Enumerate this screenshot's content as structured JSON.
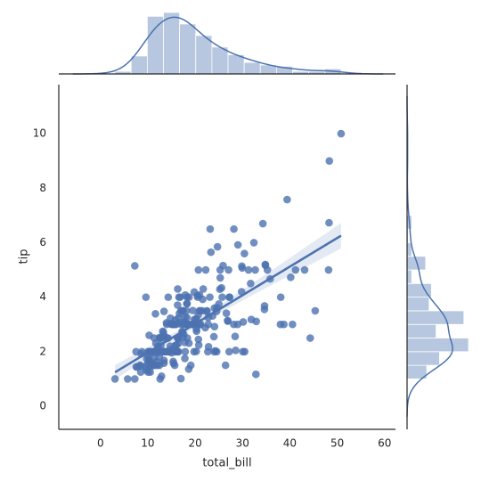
{
  "chart_data": {
    "type": "jointplot-reg",
    "xlabel": "total_bill",
    "ylabel": "tip",
    "color": "#4c72b0",
    "xlim": [
      -8.8,
      62.3
    ],
    "ylim": [
      -0.85,
      11.8
    ],
    "xticks": [
      0,
      10,
      20,
      30,
      40,
      50,
      60
    ],
    "yticks": [
      0,
      2,
      4,
      6,
      8,
      10
    ],
    "x": [
      16.99,
      10.34,
      21.01,
      23.68,
      24.59,
      25.29,
      8.77,
      26.88,
      15.04,
      14.78,
      10.27,
      35.26,
      15.42,
      18.43,
      14.83,
      21.58,
      10.33,
      16.29,
      16.97,
      20.65,
      17.92,
      20.29,
      15.77,
      39.42,
      19.82,
      17.81,
      13.37,
      12.69,
      21.7,
      19.65,
      9.55,
      18.35,
      15.06,
      20.69,
      17.78,
      24.06,
      16.31,
      16.93,
      18.69,
      31.27,
      16.04,
      17.46,
      13.94,
      9.68,
      30.4,
      18.29,
      22.23,
      32.4,
      28.55,
      18.04,
      12.54,
      10.29,
      34.81,
      9.94,
      25.56,
      19.49,
      38.01,
      26.41,
      11.24,
      48.27,
      20.29,
      13.81,
      11.02,
      18.29,
      17.59,
      20.08,
      16.45,
      3.07,
      20.23,
      15.01,
      12.02,
      17.07,
      26.86,
      25.28,
      14.73,
      10.51,
      17.92,
      27.2,
      22.76,
      17.29,
      19.44,
      16.66,
      10.07,
      32.68,
      15.98,
      34.83,
      13.03,
      18.28,
      24.71,
      21.16,
      28.97,
      22.49,
      5.75,
      16.32,
      22.75,
      40.17,
      27.28,
      12.03,
      21.01,
      12.46,
      11.35,
      15.38,
      44.3,
      22.42,
      20.92,
      15.36,
      20.49,
      25.21,
      18.24,
      14.31,
      14,
      7.25,
      38.07,
      23.95,
      25.71,
      17.31,
      29.93,
      10.65,
      12.43,
      24.08,
      11.69,
      13.42,
      14.26,
      15.95,
      12.48,
      29.8,
      8.52,
      14.52,
      11.38,
      22.82,
      19.08,
      20.27,
      11.17,
      12.26,
      18.26,
      8.51,
      10.33,
      14.15,
      16,
      13.16,
      17.47,
      34.3,
      41.19,
      27.05,
      16.43,
      8.35,
      18.64,
      11.87,
      9.78,
      7.51,
      14.07,
      13.13,
      17.26,
      24.55,
      19.77,
      29.85,
      48.17,
      25,
      13.39,
      16.49,
      21.5,
      12.66,
      16.21,
      13.81,
      17.51,
      24.52,
      20.76,
      31.71,
      10.59,
      10.63,
      50.81,
      15.81,
      7.25,
      31.85,
      16.82,
      32.9,
      17.89,
      14.48,
      9.6,
      34.63,
      34.65,
      23.33,
      45.35,
      23.17,
      40.55,
      20.69,
      20.9,
      30.46,
      18.15,
      23.1,
      15.69,
      19.81,
      28.44,
      15.48,
      16.58,
      7.56,
      10.34,
      43.11,
      13,
      13.51,
      18.71,
      12.74,
      13,
      16.4,
      20.53,
      16.47,
      26.59,
      38.73,
      24.27,
      12.76,
      30.06,
      25.89,
      48.33,
      13.27,
      28.17,
      12.9,
      28.15,
      11.59,
      7.74,
      30.14,
      12.16,
      13.42,
      8.58,
      15.98,
      13.42,
      16.27,
      10.09,
      20.45,
      13.28,
      22.12,
      24.01,
      15.69,
      11.61,
      10.77,
      15.53,
      10.07,
      12.6,
      32.83,
      35.83,
      29.03,
      27.18,
      22.67,
      17.82,
      18.78
    ],
    "y": [
      1.01,
      1.66,
      3.5,
      3.31,
      3.61,
      4.71,
      2,
      3.12,
      1.96,
      3.23,
      1.71,
      5,
      1.57,
      3,
      3.02,
      3.92,
      1.67,
      3.71,
      3.5,
      3.35,
      4.08,
      2.75,
      2.23,
      7.58,
      3.18,
      2.34,
      2,
      2,
      4.3,
      3,
      1.45,
      2.5,
      3,
      2.45,
      3.27,
      3.6,
      2,
      3.07,
      2.31,
      5,
      2.24,
      2.54,
      3.06,
      1.32,
      5.6,
      3,
      5,
      6,
      2.05,
      3,
      2.5,
      2.6,
      5.2,
      1.56,
      4.34,
      3.51,
      3,
      1.5,
      1.76,
      6.73,
      3.21,
      2,
      1.98,
      3.76,
      2.64,
      3.15,
      2.47,
      1,
      2.01,
      2.09,
      1.97,
      3,
      3.14,
      5,
      2.2,
      1.25,
      3.08,
      4,
      3,
      2.71,
      3,
      3.4,
      1.83,
      5,
      2.03,
      5.17,
      2,
      4,
      5.85,
      3,
      3,
      3.5,
      1,
      4.3,
      3.25,
      4.73,
      4,
      1.5,
      3,
      1.5,
      2.5,
      3,
      2.5,
      3.48,
      4.08,
      1.64,
      4.06,
      4.29,
      3.76,
      4,
      3,
      1,
      4,
      2.55,
      4,
      3.5,
      5.07,
      1.5,
      1.8,
      2.92,
      2.31,
      1.68,
      2.5,
      2,
      2.52,
      4.2,
      1.48,
      2,
      2,
      2.18,
      1.5,
      2.83,
      1.5,
      2,
      3.25,
      1.25,
      2,
      2,
      2,
      2.75,
      3.5,
      6.7,
      5,
      5,
      2.3,
      1.5,
      1.36,
      1.63,
      1.73,
      2,
      2.5,
      2,
      2.74,
      2,
      2,
      5.14,
      5,
      3.75,
      2.61,
      2,
      3.5,
      2.5,
      2,
      2,
      3,
      3.48,
      2.24,
      4.5,
      1.61,
      2,
      10,
      3.16,
      5.15,
      3.18,
      4,
      3.11,
      2,
      2,
      4,
      3.55,
      3.68,
      5.65,
      3.5,
      6.5,
      3,
      5,
      3.5,
      2,
      3.5,
      4,
      1.5,
      4.19,
      2.56,
      2.02,
      4,
      1.44,
      2,
      5,
      2,
      2,
      4,
      2.01,
      2,
      2.5,
      4,
      3.23,
      3.41,
      3,
      2.03,
      2.23,
      2,
      5.16,
      9,
      2.5,
      6.5,
      1.1,
      3,
      1.5,
      1.44,
      3.09,
      2.2,
      3.48,
      1.92,
      3,
      1.58,
      2.5,
      2,
      3,
      2.72,
      2.88,
      2,
      3,
      3.39,
      1.47,
      3,
      1.25,
      1,
      1.17,
      4.67,
      5.92,
      2,
      2,
      1.75,
      3
    ]
  }
}
